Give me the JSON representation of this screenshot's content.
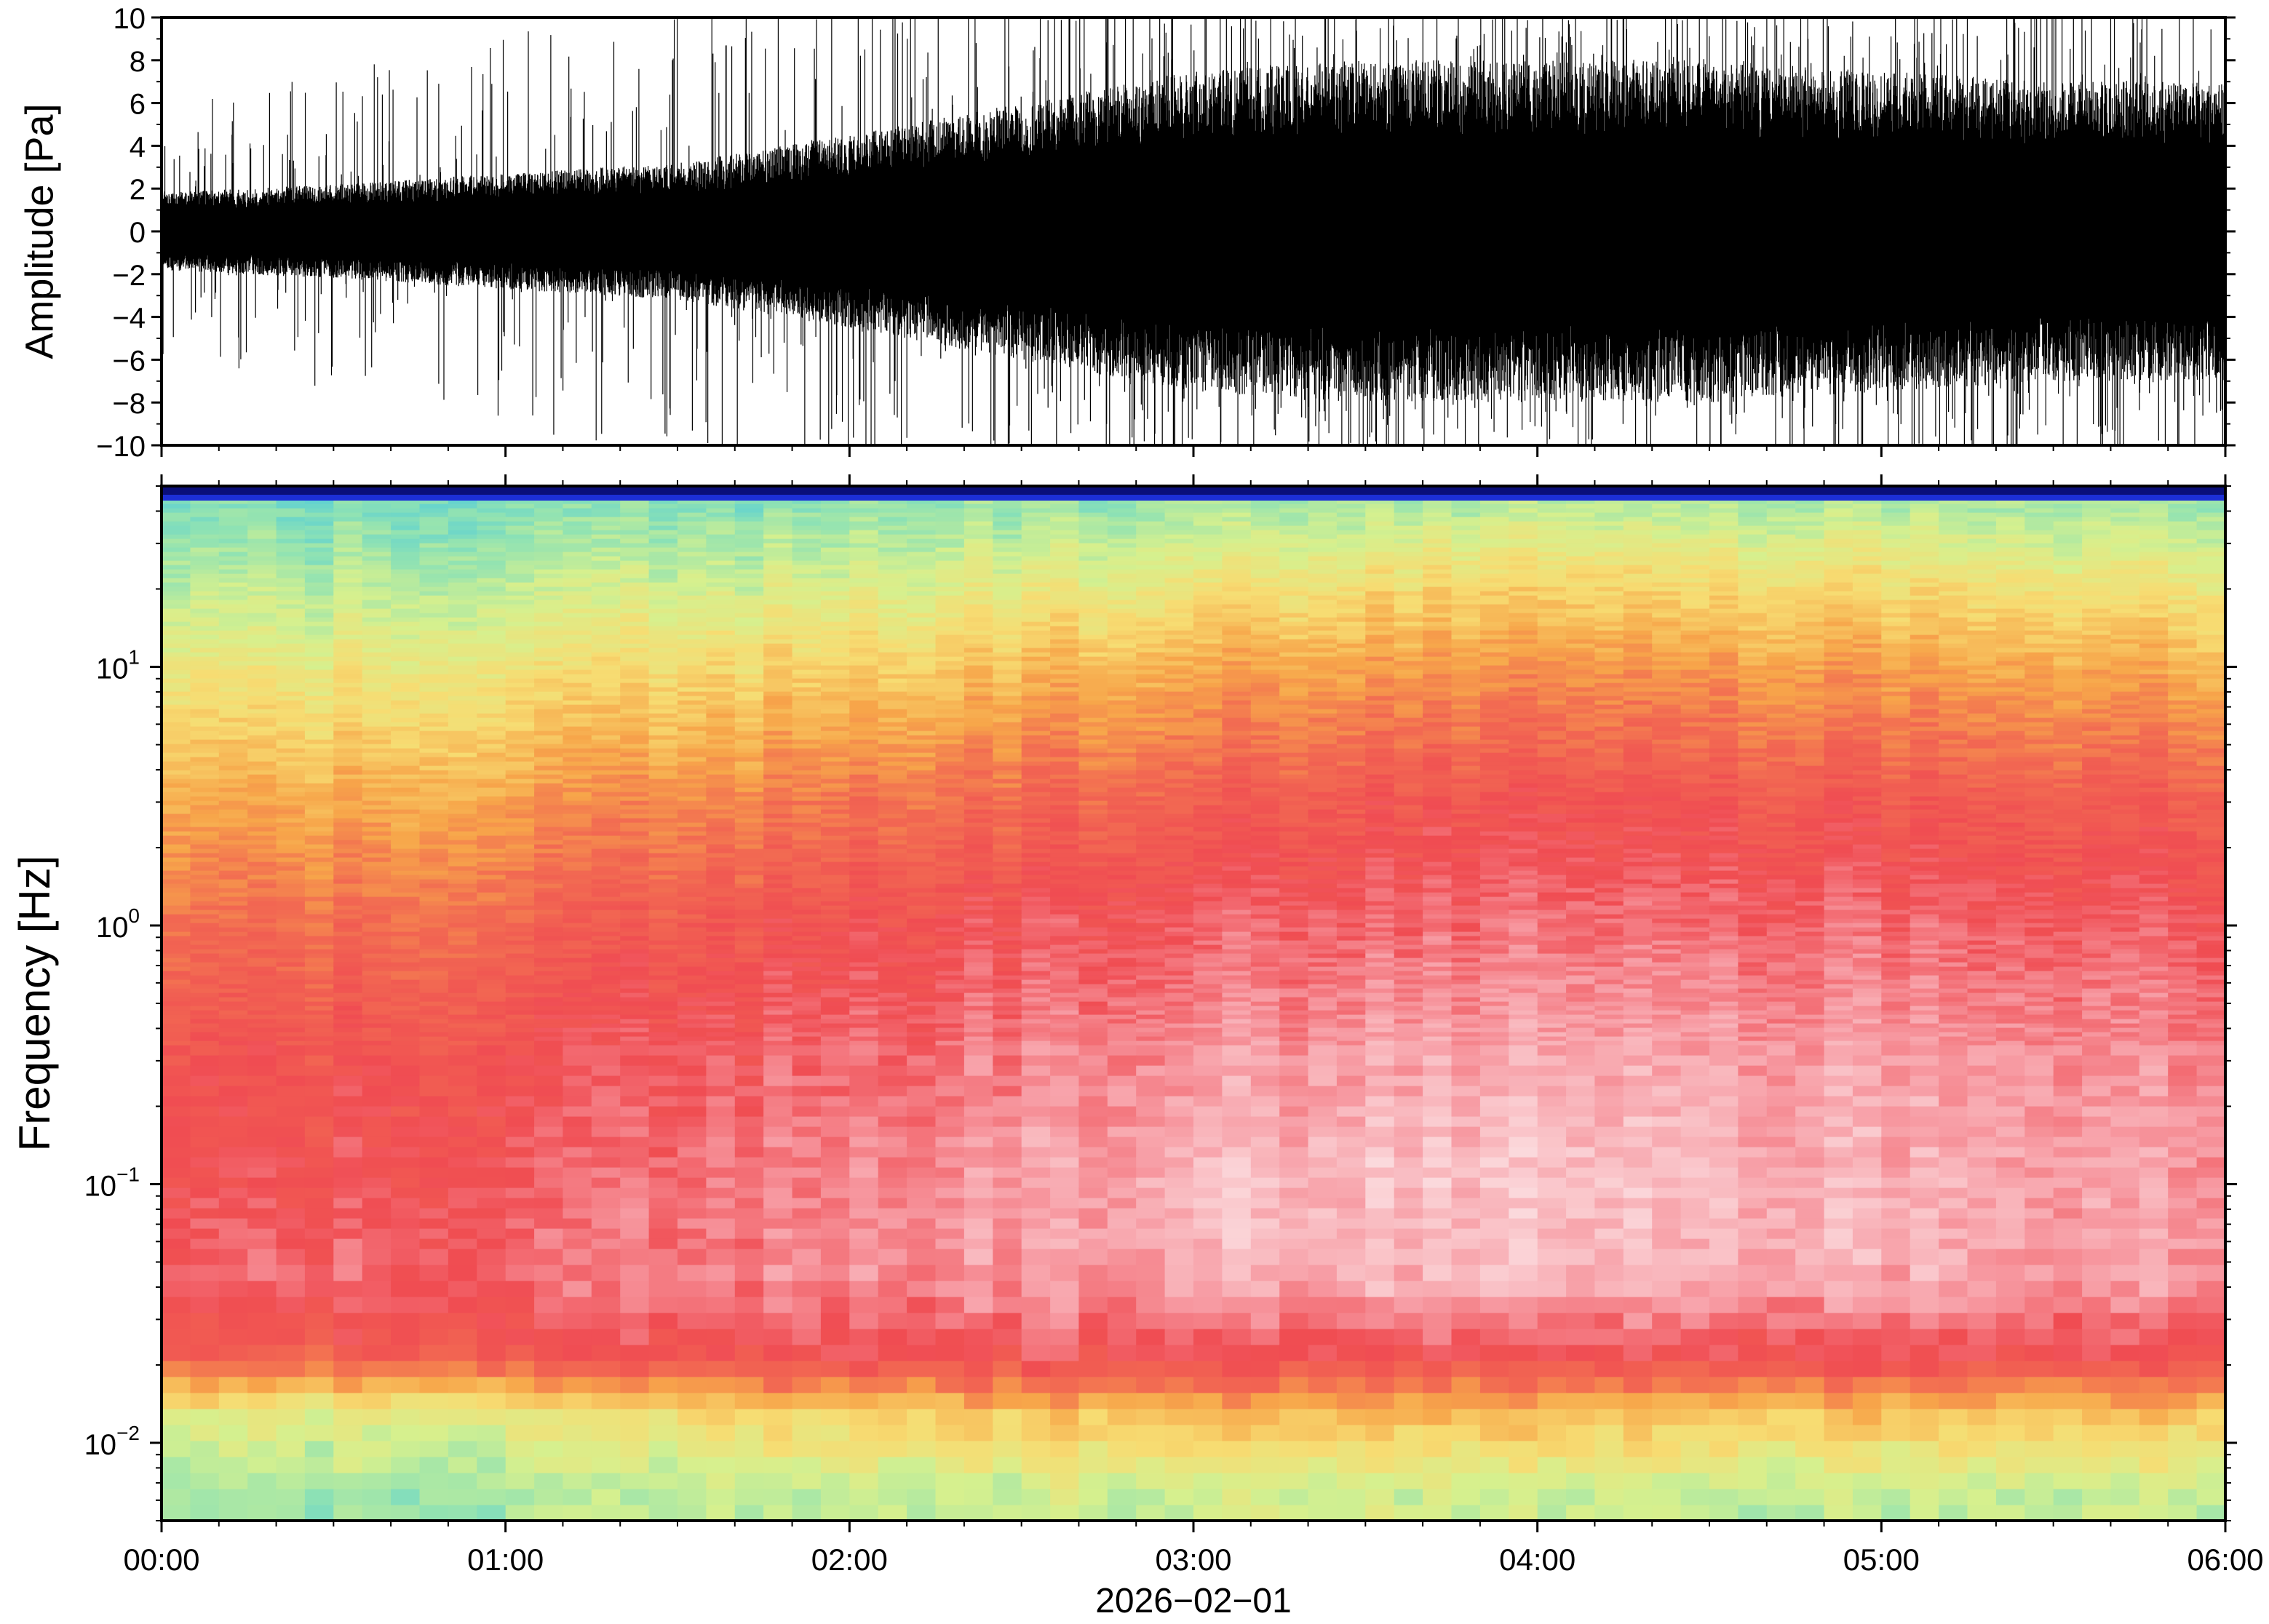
{
  "chart_data": [
    {
      "type": "line",
      "panel": "waveform",
      "ylabel": "Amplitude [Pa]",
      "ylim": [
        -10,
        10
      ],
      "yticks": [
        -10,
        -8,
        -6,
        -4,
        -2,
        0,
        2,
        4,
        6,
        8,
        10
      ],
      "ytick_labels": [
        "−10",
        "−8",
        "−6",
        "−4",
        "−2",
        "0",
        "2",
        "4",
        "6",
        "8",
        "10"
      ],
      "xlim": [
        "00:00",
        "06:00"
      ],
      "grid": false,
      "line_color": "#000000",
      "envelope": {
        "hours": [
          0.0,
          0.5,
          1.0,
          1.5,
          2.0,
          2.5,
          3.0,
          3.5,
          4.0,
          4.5,
          5.0,
          5.5,
          6.0
        ],
        "typical_amplitude_pa": [
          1.8,
          2.2,
          2.7,
          3.2,
          4.5,
          6.0,
          7.5,
          8.0,
          8.0,
          8.0,
          7.5,
          7.0,
          7.0
        ],
        "peak_amplitude_pa": [
          5.0,
          6.5,
          8.0,
          9.0,
          10.0,
          10.0,
          10.0,
          10.0,
          10.0,
          10.0,
          10.0,
          10.0,
          10.0
        ]
      }
    },
    {
      "type": "heatmap",
      "panel": "spectrogram",
      "ylabel": "Frequency [Hz]",
      "yscale": "log",
      "ylim_hz": [
        0.005,
        50
      ],
      "yticks_hz": [
        0.01,
        0.1,
        1,
        10
      ],
      "ytick_labels": [
        {
          "base": "10",
          "exp": "−2"
        },
        {
          "base": "10",
          "exp": "−1"
        },
        {
          "base": "10",
          "exp": "0"
        },
        {
          "base": "10",
          "exp": "1"
        }
      ],
      "xlabel": "2026−02−01",
      "xticks": [
        "00:00",
        "01:00",
        "02:00",
        "03:00",
        "04:00",
        "05:00",
        "06:00"
      ],
      "colormap": [
        "#1c2fd6",
        "#2f8ff0",
        "#49c9e0",
        "#8ee2b4",
        "#d6f08e",
        "#f7dc72",
        "#f7a64a",
        "#f26a52",
        "#f04c52",
        "#f79aa2",
        "#fbd9dc"
      ],
      "power_level_grid": {
        "time_hours": [
          0,
          1,
          2,
          3,
          4,
          5,
          6
        ],
        "frequency_hz": [
          0.006,
          0.012,
          0.02,
          0.04,
          0.1,
          0.3,
          1,
          3,
          10,
          25,
          40
        ],
        "levels_0_to_1": [
          [
            0.32,
            0.42,
            0.72,
            0.82,
            0.78,
            0.76,
            0.68,
            0.58,
            0.44,
            0.33,
            0.28
          ],
          [
            0.34,
            0.46,
            0.76,
            0.85,
            0.82,
            0.79,
            0.72,
            0.61,
            0.47,
            0.35,
            0.29
          ],
          [
            0.38,
            0.52,
            0.8,
            0.88,
            0.87,
            0.84,
            0.78,
            0.68,
            0.52,
            0.38,
            0.31
          ],
          [
            0.4,
            0.57,
            0.8,
            0.93,
            0.95,
            0.9,
            0.83,
            0.74,
            0.59,
            0.44,
            0.34
          ],
          [
            0.38,
            0.55,
            0.78,
            0.94,
            0.96,
            0.92,
            0.84,
            0.77,
            0.62,
            0.47,
            0.36
          ],
          [
            0.37,
            0.54,
            0.79,
            0.92,
            0.93,
            0.9,
            0.83,
            0.75,
            0.6,
            0.45,
            0.35
          ],
          [
            0.38,
            0.55,
            0.8,
            0.9,
            0.9,
            0.88,
            0.82,
            0.74,
            0.58,
            0.43,
            0.34
          ]
        ]
      },
      "top_edge_color": "#0a0f7a"
    }
  ]
}
